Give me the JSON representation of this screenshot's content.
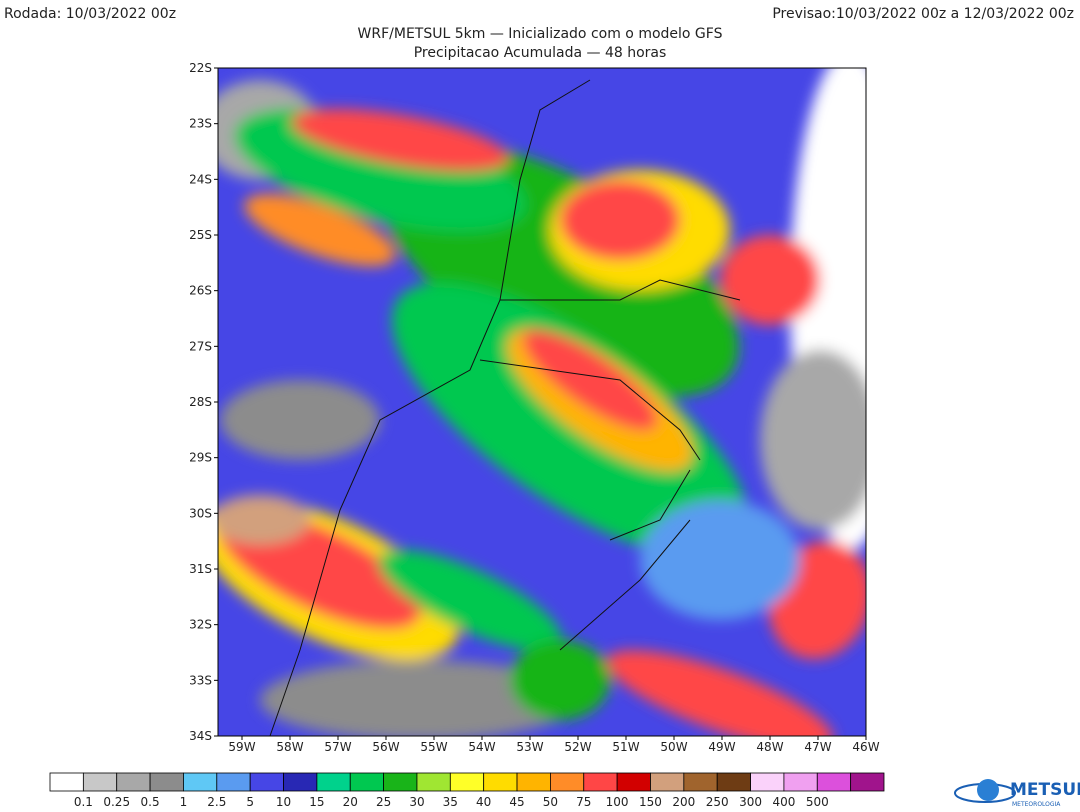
{
  "header": {
    "left": "Rodada: 10/03/2022 00z",
    "right": "Previsao:10/03/2022 00z a 12/03/2022 00z",
    "title": "WRF/METSUL 5km — Inicializado com o modelo GFS",
    "subtitle": "Precipitacao Acumulada — 48 horas"
  },
  "map": {
    "lat_labels": [
      "22S",
      "23S",
      "24S",
      "25S",
      "26S",
      "27S",
      "28S",
      "29S",
      "30S",
      "31S",
      "32S",
      "33S",
      "34S"
    ],
    "lon_labels": [
      "59W",
      "58W",
      "57W",
      "56W",
      "55W",
      "54W",
      "53W",
      "52W",
      "51W",
      "50W",
      "49W",
      "48W",
      "47W",
      "46W"
    ]
  },
  "colorbar": {
    "colors": [
      "#ffffff",
      "#c8c8c8",
      "#a8a8a8",
      "#8c8c8c",
      "#5fc8f5",
      "#5a9bf0",
      "#4646e6",
      "#2828b4",
      "#00d28c",
      "#00c850",
      "#19b419",
      "#a0e632",
      "#ffff28",
      "#ffdc00",
      "#ffb400",
      "#ff8c28",
      "#ff4646",
      "#d20000",
      "#d2a07d",
      "#a0642d",
      "#6e3c14",
      "#fad2fa",
      "#f0a0f0",
      "#dc50dc",
      "#a0148c"
    ],
    "labels": [
      "0.1",
      "0.25",
      "0.5",
      "1",
      "2.5",
      "5",
      "10",
      "15",
      "20",
      "25",
      "30",
      "35",
      "40",
      "45",
      "50",
      "75",
      "100",
      "150",
      "200",
      "250",
      "300",
      "400",
      "500"
    ]
  },
  "logo": {
    "name": "METSUL",
    "tagline": "METEOROLOGIA"
  }
}
